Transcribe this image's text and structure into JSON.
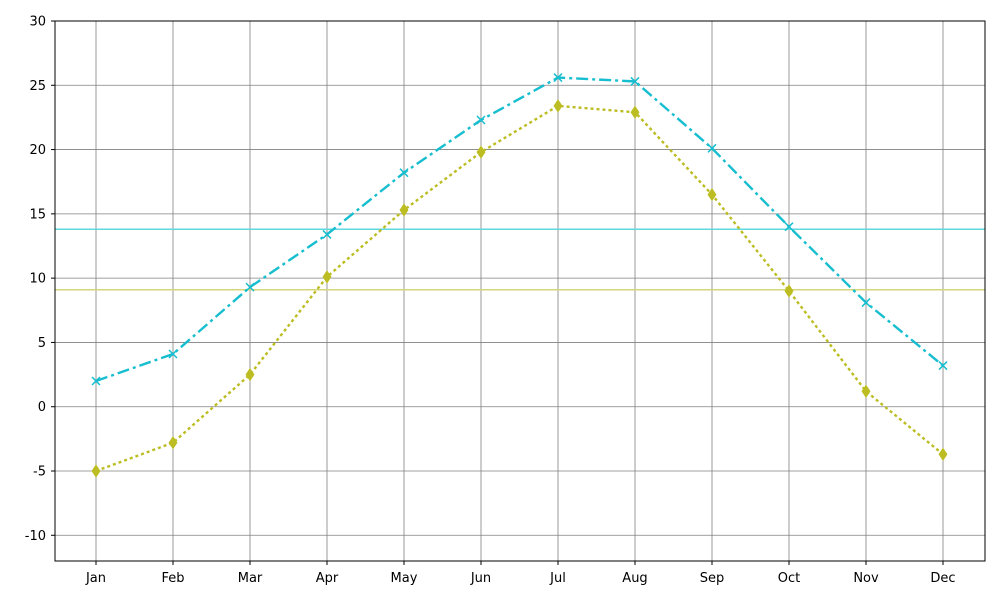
{
  "chart_data": {
    "type": "line",
    "title": "",
    "xlabel": "",
    "ylabel": "",
    "categories": [
      "Jan",
      "Feb",
      "Mar",
      "Apr",
      "May",
      "Jun",
      "Jul",
      "Aug",
      "Sep",
      "Oct",
      "Nov",
      "Dec"
    ],
    "ylim": [
      -12,
      30
    ],
    "yticks": [
      -10,
      -5,
      0,
      5,
      10,
      15,
      20,
      25,
      30
    ],
    "grid": true,
    "legend": "none",
    "series": [
      {
        "values": [
          2.0,
          4.1,
          9.3,
          13.4,
          18.2,
          22.3,
          25.6,
          25.3,
          20.1,
          14.0,
          8.1,
          3.2
        ],
        "color": "#17becf",
        "line_style": "dash-dot",
        "marker": "x",
        "mean_line": 13.8
      },
      {
        "values": [
          -5.0,
          -2.8,
          2.5,
          10.1,
          15.3,
          19.8,
          23.4,
          22.9,
          16.5,
          9.0,
          1.2,
          -3.7
        ],
        "color": "#bcbd22",
        "line_style": "dotted",
        "marker": "diamond",
        "mean_line": 9.1
      }
    ]
  }
}
